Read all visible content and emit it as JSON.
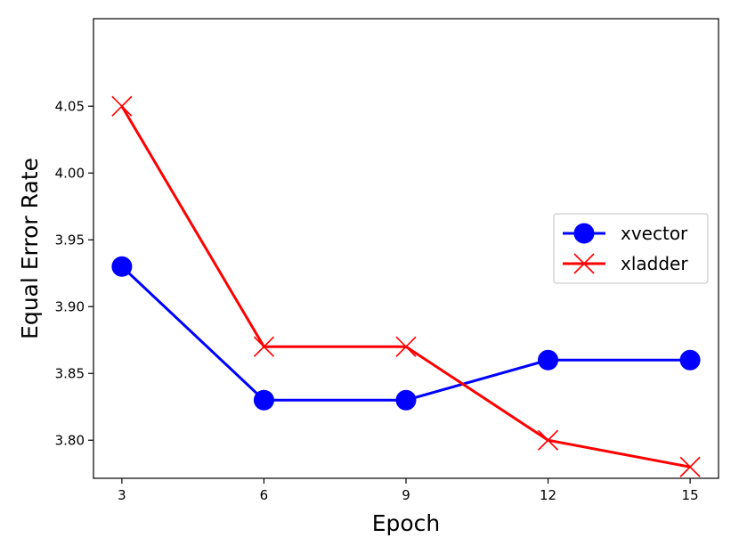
{
  "chart_data": {
    "type": "line",
    "title": "",
    "xlabel": "Epoch",
    "ylabel": "Equal Error Rate",
    "x": [
      3,
      6,
      9,
      12,
      15
    ],
    "xticks": [
      "3",
      "6",
      "9",
      "12",
      "15"
    ],
    "yticks": [
      "3.80",
      "3.85",
      "3.90",
      "3.95",
      "4.00",
      "4.05"
    ],
    "xlim": [
      2.4,
      15.6
    ],
    "ylim": [
      3.7715,
      4.1155
    ],
    "grid": false,
    "legend_position": "center-right",
    "series": [
      {
        "name": "xvector",
        "values": [
          3.93,
          3.83,
          3.83,
          3.86,
          3.86
        ],
        "color": "#0000ff",
        "marker": "circle"
      },
      {
        "name": "xladder",
        "values": [
          4.05,
          3.87,
          3.87,
          3.8,
          3.78
        ],
        "color": "#ff0000",
        "marker": "x"
      }
    ]
  }
}
